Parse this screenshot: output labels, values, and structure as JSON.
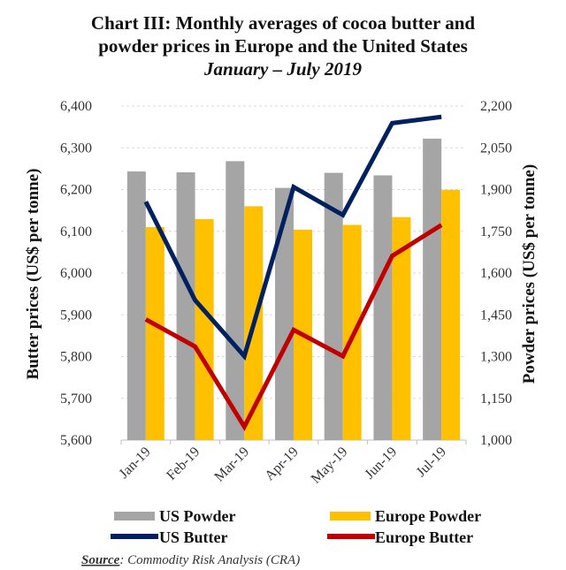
{
  "chart_data": {
    "type": "bar+line",
    "title_lines": [
      "Chart III: Monthly averages of cocoa butter and",
      "powder prices in Europe and the United States"
    ],
    "subtitle": "January – July 2019",
    "categories": [
      "Jan-19",
      "Feb-19",
      "Mar-19",
      "Apr-19",
      "May-19",
      "Jun-19",
      "Jul-19"
    ],
    "ylabel_left": "Butter prices (US$ per tonne)",
    "ylabel_right": "Powder prices (US$ per tonne)",
    "ylim_left": [
      5600,
      6400
    ],
    "ylim_right": [
      1000,
      2200
    ],
    "yticks_left": [
      "5,600",
      "5,700",
      "5,800",
      "5,900",
      "6,000",
      "6,100",
      "6,200",
      "6,300",
      "6,400"
    ],
    "yticks_right": [
      "1,000",
      "1,150",
      "1,300",
      "1,450",
      "1,600",
      "1,750",
      "1,900",
      "2,050",
      "2,200"
    ],
    "grid": "horizontal dashed",
    "legend_position": "bottom",
    "series": [
      {
        "name": "US Powder",
        "type": "bar",
        "axis": "right",
        "color": "#A5A5A5",
        "values": [
          1965,
          1962,
          2002,
          1906,
          1960,
          1951,
          2083
        ]
      },
      {
        "name": "Europe Powder",
        "type": "bar",
        "axis": "right",
        "color": "#FFC000",
        "values": [
          1765,
          1794,
          1840,
          1756,
          1773,
          1801,
          1899
        ]
      },
      {
        "name": "US Butter",
        "type": "line",
        "axis": "left",
        "color": "#002060",
        "values": [
          6171,
          5935,
          5801,
          6206,
          6139,
          6359,
          6374
        ]
      },
      {
        "name": "Europe Butter",
        "type": "line",
        "axis": "left",
        "color": "#C00000",
        "values": [
          5889,
          5824,
          5632,
          5864,
          5801,
          6041,
          6115
        ]
      }
    ],
    "source_label": "Source",
    "source_text": ": Commodity Risk Analysis (CRA)"
  }
}
